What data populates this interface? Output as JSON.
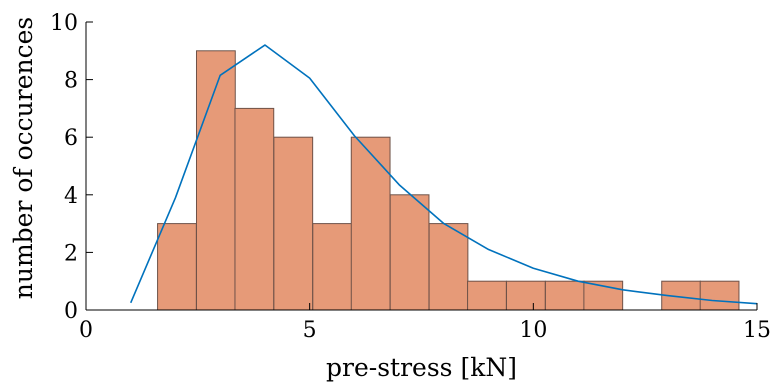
{
  "chart_data": {
    "type": "bar",
    "title": "",
    "xlabel": "pre-stress [kN]",
    "ylabel": "number of occurences",
    "xlim": [
      0,
      15
    ],
    "ylim": [
      0,
      10
    ],
    "xticks": [
      0,
      5,
      10,
      15
    ],
    "yticks": [
      0,
      2,
      4,
      6,
      8,
      10
    ],
    "grid": false,
    "legend": "none",
    "histogram": {
      "bin_width": 0.8667,
      "bins": [
        {
          "start": 1.6,
          "count": 3
        },
        {
          "start": 2.47,
          "count": 9
        },
        {
          "start": 3.33,
          "count": 7
        },
        {
          "start": 4.2,
          "count": 6
        },
        {
          "start": 5.07,
          "count": 3
        },
        {
          "start": 5.93,
          "count": 6
        },
        {
          "start": 6.8,
          "count": 4
        },
        {
          "start": 7.67,
          "count": 3
        },
        {
          "start": 8.53,
          "count": 1
        },
        {
          "start": 9.4,
          "count": 1
        },
        {
          "start": 10.27,
          "count": 1
        },
        {
          "start": 11.13,
          "count": 1
        },
        {
          "start": 12.0,
          "count": 0
        },
        {
          "start": 12.87,
          "count": 1
        },
        {
          "start": 13.73,
          "count": 1
        }
      ]
    },
    "series": [
      {
        "type": "line",
        "x": [
          1,
          2,
          3,
          4,
          5,
          6,
          7,
          8,
          9,
          10,
          11,
          12,
          13,
          14,
          15
        ],
        "y": [
          0.25,
          3.9,
          8.15,
          9.2,
          8.05,
          6.05,
          4.35,
          3.0,
          2.1,
          1.45,
          1.0,
          0.7,
          0.5,
          0.33,
          0.22
        ]
      }
    ],
    "colors": {
      "bar_fill": "#e69a78",
      "bar_edge": "#6e5248",
      "line": "#0072bd",
      "axis": "#000000"
    }
  }
}
